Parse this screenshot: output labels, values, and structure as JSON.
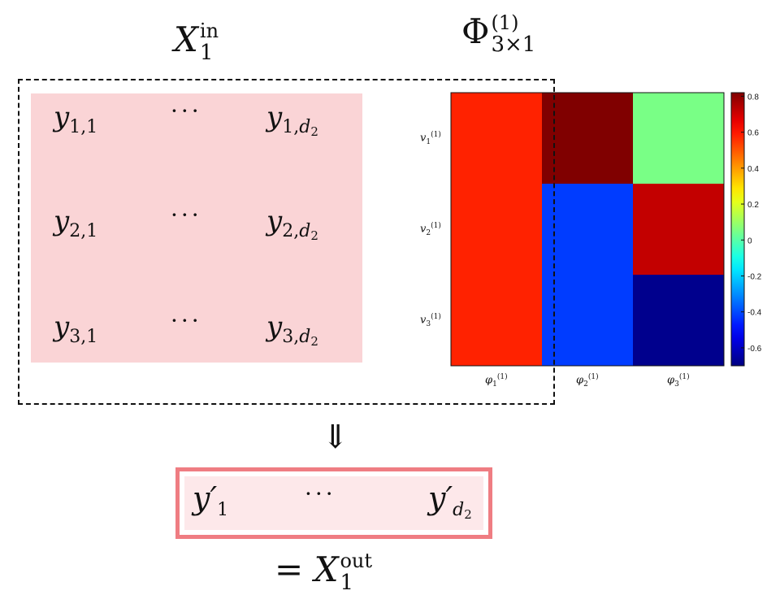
{
  "input_label": {
    "base": "X",
    "sup": "in",
    "sub": "1"
  },
  "phi_label": {
    "base": "Φ",
    "sup": "(1)",
    "sub": "3×1"
  },
  "input_matrix": {
    "rows": [
      [
        "y",
        "1,1",
        "···",
        "y",
        "1,",
        "d",
        "2"
      ],
      [
        "y",
        "2,1",
        "···",
        "y",
        "2,",
        "d",
        "2"
      ],
      [
        "y",
        "3,1",
        "···",
        "y",
        "3,",
        "d",
        "2"
      ]
    ],
    "fill_color": "#fad4d6"
  },
  "arrow": "⇓",
  "output_row": {
    "first": {
      "base": "y′",
      "sub": "1"
    },
    "dots": "···",
    "last": {
      "base": "y′",
      "sub_base": "d",
      "sub_sub": "2"
    },
    "border_color": "#ef7d82",
    "fill_color": "#fde8ea"
  },
  "output_label": {
    "prefix": "=",
    "base": "X",
    "sup": "out",
    "sub": "1"
  },
  "chart_data": {
    "type": "heatmap",
    "rows": [
      "v1(1)",
      "v2(1)",
      "v3(1)"
    ],
    "columns": [
      "φ1(1)",
      "φ2(1)",
      "φ3(1)"
    ],
    "row_labels": [
      {
        "base": "v",
        "sub": "1",
        "sup": "(1)"
      },
      {
        "base": "v",
        "sub": "2",
        "sup": "(1)"
      },
      {
        "base": "v",
        "sub": "3",
        "sup": "(1)"
      }
    ],
    "column_labels": [
      {
        "base": "φ",
        "sub": "1",
        "sup": "(1)"
      },
      {
        "base": "φ",
        "sub": "2",
        "sup": "(1)"
      },
      {
        "base": "φ",
        "sub": "3",
        "sup": "(1)"
      }
    ],
    "cells": [
      {
        "col": 0,
        "row_start": 0,
        "row_end": 3,
        "value": 0.58
      },
      {
        "col": 1,
        "row_start": 0,
        "row_end": 1,
        "value": 0.82
      },
      {
        "col": 1,
        "row_start": 1,
        "row_end": 3,
        "value": -0.42
      },
      {
        "col": 2,
        "row_start": 0,
        "row_end": 1,
        "value": 0.05
      },
      {
        "col": 2,
        "row_start": 1,
        "row_end": 2,
        "value": 0.72
      },
      {
        "col": 2,
        "row_start": 2,
        "row_end": 3,
        "value": -0.68
      }
    ],
    "colorbar": {
      "min": -0.7,
      "max": 0.82,
      "ticks": [
        "0.8",
        "0.6",
        "0.4",
        "0.2",
        "0",
        "-0.2",
        "-0.4",
        "-0.6"
      ],
      "colormap": "jet"
    }
  }
}
